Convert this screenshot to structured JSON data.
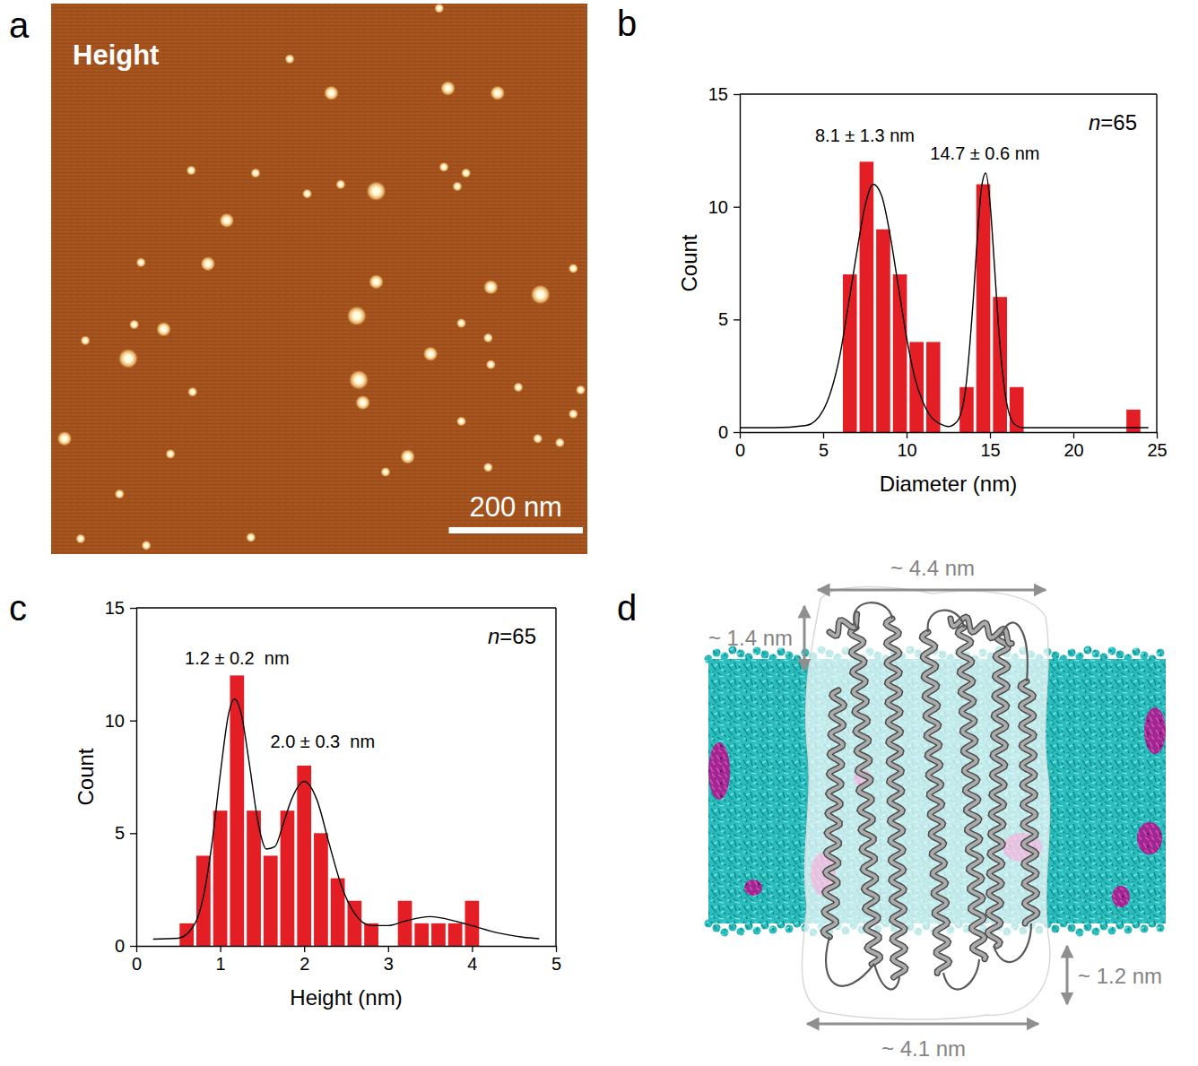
{
  "chart_data": [
    {
      "type": "image",
      "panel_label": "a",
      "title": "Height",
      "tick_labels": false,
      "xlim": [
        0,
        800
      ],
      "ylim": [
        0,
        825
      ],
      "particles": {
        "x": [
          579,
          356,
          418,
          592,
          666,
          485,
          262,
          234,
          134,
          168,
          115,
          51,
          456,
          485,
          566,
          656,
          730,
          779,
          459,
          465,
          532,
          20,
          142,
          298,
          790,
          656,
          697,
          612,
          652,
          726,
          759,
          619,
          606,
          586,
          382,
          432,
          305,
          209,
          102,
          612,
          779,
          44,
          499,
          652,
          211,
          178,
          124
        ],
        "y": [
          7,
          83,
          134,
          127,
          134,
          281,
          325,
          390,
          388,
          488,
          532,
          505,
          468,
          417,
          525,
          425,
          436,
          397,
          564,
          598,
          679,
          652,
          812,
          800,
          579,
          541,
          575,
          479,
          501,
          652,
          658,
          254,
          274,
          245,
          285,
          271,
          254,
          250,
          735,
          626,
          615,
          802,
          702,
          695,
          582,
          675,
          481
        ],
        "diameter": [
          12,
          12,
          18,
          18,
          18,
          24,
          18,
          18,
          12,
          18,
          24,
          12,
          24,
          18,
          18,
          18,
          24,
          12,
          24,
          18,
          18,
          18,
          12,
          12,
          12,
          12,
          12,
          12,
          12,
          12,
          12,
          12,
          12,
          12,
          12,
          12,
          12,
          12,
          12,
          12,
          12,
          12,
          12,
          12,
          12,
          12,
          12
        ]
      },
      "scale_bar": {
        "value": 200,
        "label": "200 nm"
      }
    },
    {
      "type": "histogram",
      "panel_label": "b",
      "x_label": "Diameter (nm)",
      "y_label": "Count",
      "color": "#e41e25",
      "bins": [
        6.1,
        7.1,
        8.1,
        9.1,
        10.1,
        11.1,
        12.1,
        13.1,
        14.1,
        15.1,
        16.1,
        17.1,
        18.1,
        19.1,
        20.1,
        21.1,
        22.1,
        23.1,
        24.1
      ],
      "counts": [
        7,
        12,
        9,
        7,
        4,
        4,
        0,
        2,
        11,
        6,
        2,
        0,
        0,
        0,
        0,
        0,
        0,
        1
      ],
      "xlim": [
        0,
        25
      ],
      "ylim": [
        0,
        15
      ],
      "xticks": [
        0,
        5,
        10,
        15,
        20,
        25
      ],
      "yticks": [
        0,
        5,
        10,
        15
      ],
      "fit": {
        "x": [
          0,
          2,
          4,
          5,
          5.5,
          6,
          6.5,
          7,
          7.5,
          8,
          8.5,
          9,
          9.5,
          10,
          10.5,
          11,
          11.5,
          12,
          12.5,
          13,
          13.5,
          14,
          14.25,
          14.5,
          14.75,
          15,
          15.25,
          15.5,
          16,
          16.5,
          17,
          18,
          20,
          24.5
        ],
        "y": [
          0.2,
          0.2,
          0.3,
          0.97,
          1.9,
          3.4,
          5.6,
          7.9,
          10.0,
          11.0,
          10.5,
          8.8,
          6.5,
          4.2,
          2.4,
          1.3,
          0.65,
          0.37,
          0.25,
          0.45,
          1.7,
          5.9,
          8.7,
          10.9,
          11.5,
          10.2,
          7.6,
          4.8,
          1.3,
          0.33,
          0.2,
          0.2,
          0.2,
          0.2
        ]
      },
      "annotations": [
        {
          "text": "8.1 ± 1.3 nm",
          "x": 7.5,
          "y": 12.9
        },
        {
          "text": "14.7 ± 0.6 nm",
          "x": 14.7,
          "y": 12.1
        }
      ],
      "n_label": "n=65"
    },
    {
      "type": "histogram",
      "panel_label": "c",
      "x_label": "Height (nm)",
      "y_label": "Count",
      "color": "#e41e25",
      "bins": [
        0.5,
        0.7,
        0.9,
        1.1,
        1.3,
        1.5,
        1.7,
        1.9,
        2.1,
        2.3,
        2.5,
        2.7,
        2.9,
        3.1,
        3.3,
        3.5,
        3.7,
        3.9,
        4.1
      ],
      "counts": [
        1,
        4,
        6,
        12,
        6,
        4,
        6,
        8,
        5,
        3,
        2,
        1,
        0,
        2,
        1,
        1,
        1,
        2
      ],
      "xlim": [
        0,
        5
      ],
      "ylim": [
        0,
        15
      ],
      "xticks": [
        0,
        1,
        2,
        3,
        4,
        5
      ],
      "yticks": [
        0,
        5,
        10,
        15
      ],
      "fit": {
        "x": [
          0.2,
          0.5,
          0.7,
          0.8,
          0.9,
          1.0,
          1.1,
          1.17,
          1.25,
          1.35,
          1.45,
          1.55,
          1.65,
          1.75,
          1.85,
          2.0,
          2.15,
          2.3,
          2.45,
          2.6,
          2.8,
          3.0,
          3.2,
          3.5,
          3.8,
          4.0,
          4.3,
          4.6,
          4.8
        ],
        "y": [
          0.3,
          0.34,
          1.0,
          2.2,
          4.5,
          7.6,
          10.3,
          10.95,
          10.3,
          8.0,
          5.5,
          4.3,
          4.4,
          5.4,
          6.5,
          7.3,
          6.5,
          4.5,
          2.6,
          1.45,
          0.9,
          0.9,
          1.1,
          1.3,
          1.1,
          0.9,
          0.58,
          0.39,
          0.32
        ]
      },
      "annotations": [
        {
          "text": "1.2 ± 0.2  nm",
          "x": 1.2,
          "y": 12.5
        },
        {
          "text": "2.0 ± 0.3  nm",
          "x": 2.22,
          "y": 8.8
        }
      ],
      "n_label": "n=65"
    },
    {
      "type": "diagram",
      "panel_label": "d",
      "labels": [
        "~ 4.4 nm",
        "~ 1.4 nm",
        "~ 1.2 nm",
        "~ 4.1 nm"
      ]
    }
  ]
}
